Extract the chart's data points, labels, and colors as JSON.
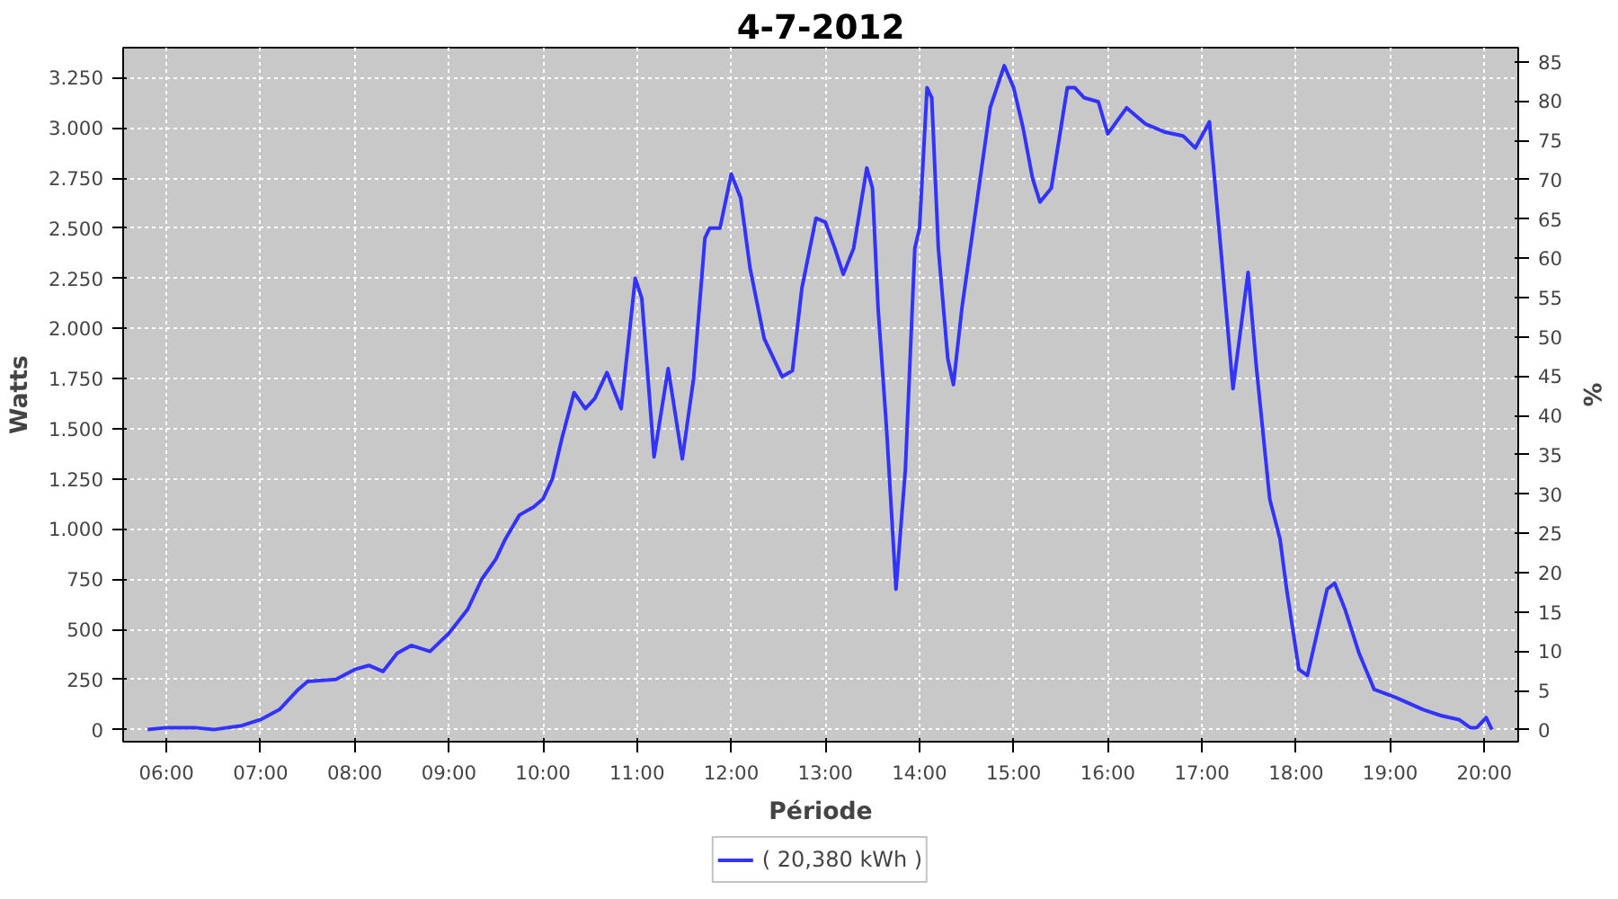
{
  "chart_data": {
    "type": "line",
    "title": "4-7-2012",
    "xlabel": "Période",
    "ylabel": "Watts",
    "y2label": "%",
    "xlim": [
      5.54,
      20.36
    ],
    "ylim": [
      -60,
      3400
    ],
    "y2lim": [
      -1.5,
      86.8
    ],
    "xticks": [
      {
        "value": 6,
        "label": "06:00"
      },
      {
        "value": 7,
        "label": "07:00"
      },
      {
        "value": 8,
        "label": "08:00"
      },
      {
        "value": 9,
        "label": "09:00"
      },
      {
        "value": 10,
        "label": "10:00"
      },
      {
        "value": 11,
        "label": "11:00"
      },
      {
        "value": 12,
        "label": "12:00"
      },
      {
        "value": 13,
        "label": "13:00"
      },
      {
        "value": 14,
        "label": "14:00"
      },
      {
        "value": 15,
        "label": "15:00"
      },
      {
        "value": 16,
        "label": "16:00"
      },
      {
        "value": 17,
        "label": "17:00"
      },
      {
        "value": 18,
        "label": "18:00"
      },
      {
        "value": 19,
        "label": "19:00"
      },
      {
        "value": 20,
        "label": "20:00"
      }
    ],
    "yticks": [
      0,
      250,
      500,
      750,
      {
        "value": 1000,
        "label": "1.000"
      },
      {
        "value": 1250,
        "label": "1.250"
      },
      {
        "value": 1500,
        "label": "1.500"
      },
      {
        "value": 1750,
        "label": "1.750"
      },
      {
        "value": 2000,
        "label": "2.000"
      },
      {
        "value": 2250,
        "label": "2.250"
      },
      {
        "value": 2500,
        "label": "2.500"
      },
      {
        "value": 2750,
        "label": "2.750"
      },
      {
        "value": 3000,
        "label": "3.000"
      },
      {
        "value": 3250,
        "label": "3.250"
      }
    ],
    "y2ticks": [
      0,
      5,
      10,
      15,
      20,
      25,
      30,
      35,
      40,
      45,
      50,
      55,
      60,
      65,
      70,
      75,
      80,
      85
    ],
    "grid": true,
    "legend": "bottom",
    "line_style": "solid",
    "marker": "none",
    "series": [
      {
        "name": "( 20,380 kWh )",
        "color": "#3333ff",
        "x": [
          5.8,
          6.0,
          6.3,
          6.5,
          6.8,
          7.0,
          7.2,
          7.4,
          7.5,
          7.8,
          8.0,
          8.15,
          8.3,
          8.45,
          8.6,
          8.8,
          9.0,
          9.2,
          9.35,
          9.5,
          9.6,
          9.75,
          9.9,
          10.0,
          10.1,
          10.2,
          10.33,
          10.45,
          10.55,
          10.68,
          10.83,
          10.9,
          10.98,
          11.05,
          11.18,
          11.33,
          11.48,
          11.6,
          11.72,
          11.77,
          11.88,
          12.0,
          12.1,
          12.2,
          12.35,
          12.54,
          12.65,
          12.75,
          12.9,
          13.0,
          13.1,
          13.19,
          13.3,
          13.44,
          13.5,
          13.56,
          13.65,
          13.75,
          13.85,
          13.95,
          14.0,
          14.08,
          14.13,
          14.2,
          14.3,
          14.36,
          14.45,
          14.6,
          14.75,
          14.9,
          15.0,
          15.1,
          15.2,
          15.28,
          15.4,
          15.57,
          15.65,
          15.75,
          15.9,
          16.0,
          16.2,
          16.4,
          16.6,
          16.8,
          16.93,
          17.08,
          17.2,
          17.33,
          17.49,
          17.58,
          17.72,
          17.83,
          17.9,
          18.03,
          18.12,
          18.33,
          18.41,
          18.52,
          18.67,
          18.83,
          19.06,
          19.35,
          19.54,
          19.73,
          19.85,
          19.92,
          20.02,
          20.08
        ],
        "values": [
          0,
          10,
          10,
          0,
          20,
          50,
          100,
          200,
          240,
          250,
          300,
          320,
          290,
          380,
          420,
          390,
          480,
          600,
          750,
          850,
          950,
          1070,
          1110,
          1150,
          1250,
          1450,
          1680,
          1600,
          1650,
          1780,
          1600,
          1900,
          2250,
          2150,
          1360,
          1800,
          1350,
          1750,
          2450,
          2500,
          2500,
          2770,
          2650,
          2300,
          1950,
          1760,
          1790,
          2200,
          2550,
          2530,
          2400,
          2270,
          2400,
          2800,
          2700,
          2100,
          1500,
          700,
          1300,
          2400,
          2500,
          3200,
          3150,
          2400,
          1850,
          1720,
          2100,
          2600,
          3100,
          3310,
          3200,
          3000,
          2750,
          2630,
          2700,
          3200,
          3200,
          3150,
          3130,
          2970,
          3100,
          3020,
          2980,
          2960,
          2900,
          3030,
          2400,
          1700,
          2280,
          1800,
          1150,
          950,
          700,
          300,
          270,
          700,
          730,
          600,
          380,
          200,
          160,
          100,
          70,
          50,
          10,
          10,
          60,
          0
        ]
      }
    ]
  }
}
